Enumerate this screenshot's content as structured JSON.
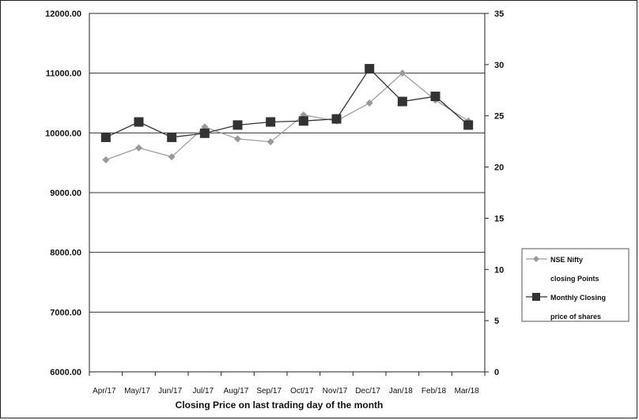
{
  "chart_data": {
    "type": "line",
    "categories": [
      "Apr/17",
      "May/17",
      "Jun/17",
      "Jul/17",
      "Aug/17",
      "Sep/17",
      "Oct/17",
      "Nov/17",
      "Dec/17",
      "Jan/18",
      "Feb/18",
      "Mar/18"
    ],
    "xlabel": "Closing Price on last trading day of the month",
    "y_left": {
      "ylim": [
        6000,
        12000
      ],
      "ticks": [
        "6000.00",
        "7000.00",
        "8000.00",
        "9000.00",
        "10000.00",
        "11000.00",
        "12000.00"
      ]
    },
    "y_right": {
      "ylim": [
        0,
        35
      ],
      "ticks": [
        "0",
        "5",
        "10",
        "15",
        "20",
        "25",
        "30",
        "35"
      ]
    },
    "grid": "horizontal",
    "legend_position": "right",
    "series": [
      {
        "name_lines": [
          "NSE Nifty",
          "closing Points"
        ],
        "axis": "left",
        "marker": "diamond",
        "color": "#999999",
        "x_index": [
          0.5,
          1.5,
          2.5,
          3.5,
          4.5,
          5.5,
          6.5,
          7.5,
          8.5,
          9.5,
          10.5,
          11.5
        ],
        "values": [
          9550,
          9750,
          9600,
          10100,
          9900,
          9850,
          10300,
          10200,
          10500,
          11000,
          10550,
          10200
        ]
      },
      {
        "name_lines": [
          "Monthly Closing",
          "price of shares"
        ],
        "axis": "right",
        "marker": "square",
        "color": "#333333",
        "x_index": [
          0,
          1,
          2,
          3,
          4,
          5,
          6,
          7,
          8,
          9,
          10,
          11
        ],
        "values": [
          22.9,
          24.4,
          22.9,
          23.3,
          24.1,
          24.4,
          24.5,
          24.7,
          29.6,
          26.4,
          26.9,
          24.1
        ]
      }
    ]
  }
}
